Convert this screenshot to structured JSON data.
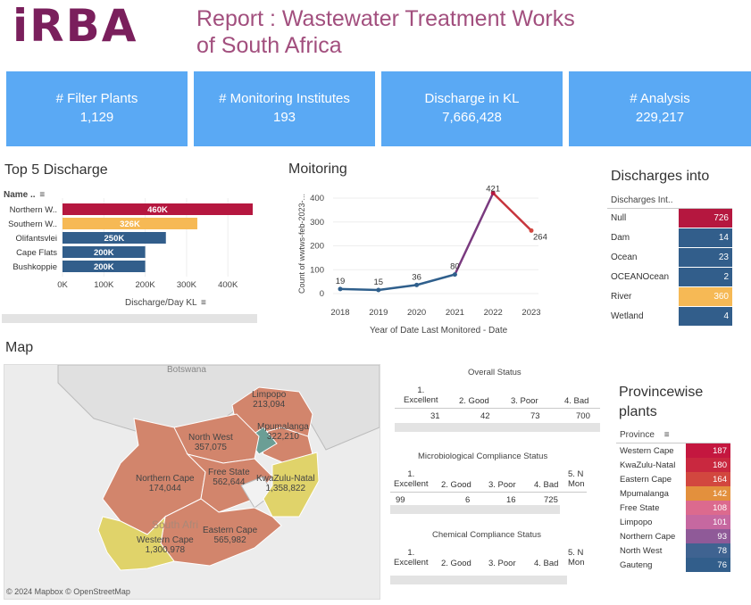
{
  "header": {
    "title_line1": "Report : Wastewater Treatment Works",
    "title_line2": "of South Africa",
    "logo_text": "iRBA",
    "brand_color": "#7a1f5c"
  },
  "kpis": [
    {
      "label": "# Filter Plants",
      "value": "1,129"
    },
    {
      "label": "# Monitoring Institutes",
      "value": "193"
    },
    {
      "label": "Discharge in KL",
      "value": "7,666,428"
    },
    {
      "label": "# Analysis",
      "value": "229,217"
    }
  ],
  "top5": {
    "title": "Top 5 Discharge",
    "col_header": "Name ..",
    "xlabel": "Discharge/Day KL",
    "ticks": [
      "0K",
      "100K",
      "200K",
      "300K",
      "400K"
    ],
    "bars": [
      {
        "name": "Northern W..",
        "value": 460,
        "label": "460K",
        "color": "#b5173f"
      },
      {
        "name": "Southern W..",
        "value": 326,
        "label": "326K",
        "color": "#f6b955"
      },
      {
        "name": "Olifantsvlei",
        "value": 250,
        "label": "250K",
        "color": "#325e8b"
      },
      {
        "name": "Cape Flats",
        "value": 200,
        "label": "200K",
        "color": "#325e8b"
      },
      {
        "name": "Bushkoppie",
        "value": 200,
        "label": "200K",
        "color": "#325e8b"
      }
    ]
  },
  "monitoring": {
    "title": "Moitoring",
    "ylabel": "Count of wwtws-feb-2023-...",
    "xlabel": "Year of Date Last Monitored - Date",
    "yticks": [
      "0",
      "100",
      "200",
      "300",
      "400"
    ],
    "years": [
      "2018",
      "2019",
      "2020",
      "2021",
      "2022",
      "2023"
    ],
    "values": [
      19,
      15,
      36,
      80,
      421,
      264
    ],
    "labels": [
      "19",
      "15",
      "36",
      "80",
      "421",
      "264"
    ]
  },
  "discharges": {
    "title": "Discharges into",
    "col_header": "Discharges Int..",
    "rows": [
      {
        "name": "Null",
        "value": "726",
        "color": "#b5173f"
      },
      {
        "name": "Dam",
        "value": "14",
        "color": "#325e8b"
      },
      {
        "name": "Ocean",
        "value": "23",
        "color": "#325e8b"
      },
      {
        "name": "OCEANOcean",
        "value": "2",
        "color": "#325e8b"
      },
      {
        "name": "River",
        "value": "360",
        "color": "#f6b955"
      },
      {
        "name": "Wetland",
        "value": "4",
        "color": "#325e8b"
      }
    ]
  },
  "map": {
    "title": "Map",
    "attribution": "© 2024 Mapbox  © OpenStreetMap",
    "botswana": "Botswana",
    "south_africa": "South Afri",
    "provinces": [
      {
        "name": "Limpopo",
        "value": "213,094"
      },
      {
        "name": "Mpumalanga",
        "value": "322,210"
      },
      {
        "name": "North West",
        "value": "357,075"
      },
      {
        "name": "Northern Cape",
        "value": "174,044"
      },
      {
        "name": "Free State",
        "value": "562,644"
      },
      {
        "name": "KwaZulu-Natal",
        "value": "1,358,822"
      },
      {
        "name": "Western Cape",
        "value": "1,300,978"
      },
      {
        "name": "Eastern Cape",
        "value": "565,982"
      }
    ]
  },
  "overall": {
    "title": "Overall Status",
    "cols": [
      "1.\nExcellent",
      "2. Good",
      "3. Poor",
      "4. Bad"
    ],
    "values": [
      "31",
      "42",
      "73",
      "700"
    ]
  },
  "micro": {
    "title": "Microbiological Compliance Status",
    "cols": [
      "1.\nExcellent",
      "2. Good",
      "3. Poor",
      "4. Bad",
      "5. N\nMon"
    ],
    "values": [
      "99",
      "6",
      "16",
      "725",
      ""
    ]
  },
  "chem": {
    "title": "Chemical Compliance Status",
    "cols": [
      "1.\nExcellent",
      "2. Good",
      "3. Poor",
      "4. Bad",
      "5. N\nMon"
    ]
  },
  "province": {
    "title_line1": "Provincewise",
    "title_line2": "plants",
    "col_header": "Province",
    "rows": [
      {
        "name": "Western Cape",
        "value": "187",
        "color": "#c4173f"
      },
      {
        "name": "KwaZulu-Natal",
        "value": "180",
        "color": "#c9283f"
      },
      {
        "name": "Eastern Cape",
        "value": "164",
        "color": "#d2473f"
      },
      {
        "name": "Mpumalanga",
        "value": "142",
        "color": "#e3903d"
      },
      {
        "name": "Free State",
        "value": "108",
        "color": "#dc6a8e"
      },
      {
        "name": "Limpopo",
        "value": "101",
        "color": "#c668a0"
      },
      {
        "name": "Northern Cape",
        "value": "93",
        "color": "#8f5a98"
      },
      {
        "name": "North West",
        "value": "78",
        "color": "#3f6391"
      },
      {
        "name": "Gauteng",
        "value": "76",
        "color": "#325e8b"
      }
    ]
  }
}
